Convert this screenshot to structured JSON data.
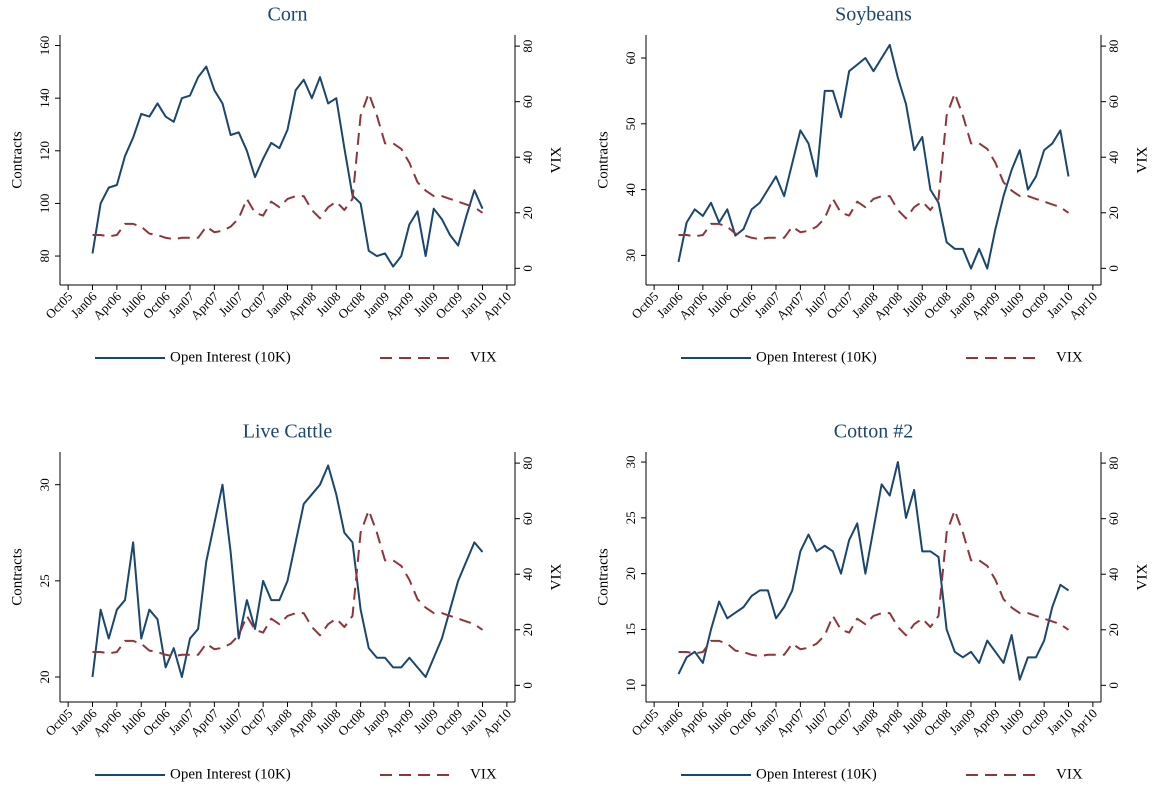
{
  "chart_data": [
    {
      "type": "line",
      "title": "Corn",
      "y_label": "Contracts",
      "y2_label": "VIX",
      "x": [
        "2006-01",
        "2006-02",
        "2006-03",
        "2006-04",
        "2006-05",
        "2006-06",
        "2006-07",
        "2006-08",
        "2006-09",
        "2006-10",
        "2006-11",
        "2006-12",
        "2007-01",
        "2007-02",
        "2007-03",
        "2007-04",
        "2007-05",
        "2007-06",
        "2007-07",
        "2007-08",
        "2007-09",
        "2007-10",
        "2007-11",
        "2007-12",
        "2008-01",
        "2008-02",
        "2008-03",
        "2008-04",
        "2008-05",
        "2008-06",
        "2008-07",
        "2008-08",
        "2008-09",
        "2008-10",
        "2008-11",
        "2008-12",
        "2009-01",
        "2009-02",
        "2009-03",
        "2009-04",
        "2009-05",
        "2009-06",
        "2009-07",
        "2009-08",
        "2009-09",
        "2009-10",
        "2009-11",
        "2009-12",
        "2010-01"
      ],
      "series": [
        {
          "name": "Open Interest (10K)",
          "color": "#1a476f",
          "linestyle": "solid",
          "values": [
            81,
            100,
            106,
            107,
            118,
            125,
            134,
            133,
            138,
            133,
            131,
            140,
            141,
            148,
            152,
            143,
            138,
            126,
            127,
            120,
            110,
            117,
            123,
            121,
            128,
            143,
            147,
            140,
            148,
            138,
            140,
            121,
            103,
            100,
            82,
            80,
            81,
            76,
            80,
            92,
            97,
            80,
            98,
            94,
            88,
            84,
            95,
            105,
            98
          ]
        },
        {
          "name": "VIX",
          "color": "#90353b",
          "linestyle": "dashed",
          "axis": "y2",
          "values": [
            12,
            12,
            11.5,
            12,
            16,
            16,
            15,
            12.5,
            12,
            11,
            10.5,
            11,
            11,
            11,
            15,
            13,
            13.5,
            15,
            18,
            25,
            20,
            19,
            24,
            22,
            25,
            26,
            26,
            21,
            18,
            22,
            24,
            21,
            25,
            55,
            63,
            55,
            45,
            45,
            43,
            38,
            31,
            28,
            26,
            26,
            25,
            24,
            23,
            22,
            20
          ]
        }
      ],
      "xlim": [
        "2005-09",
        "2010-05"
      ],
      "xticks": [
        {
          "value": "2005-10",
          "label": "Oct05"
        },
        {
          "value": "2006-01",
          "label": "Jan06"
        },
        {
          "value": "2006-04",
          "label": "Apr06"
        },
        {
          "value": "2006-07",
          "label": "Jul06"
        },
        {
          "value": "2006-10",
          "label": "Oct06"
        },
        {
          "value": "2007-01",
          "label": "Jan07"
        },
        {
          "value": "2007-04",
          "label": "Apr07"
        },
        {
          "value": "2007-07",
          "label": "Jul07"
        },
        {
          "value": "2007-10",
          "label": "Oct07"
        },
        {
          "value": "2008-01",
          "label": "Jan08"
        },
        {
          "value": "2008-04",
          "label": "Apr08"
        },
        {
          "value": "2008-07",
          "label": "Jul08"
        },
        {
          "value": "2008-10",
          "label": "Oct08"
        },
        {
          "value": "2009-01",
          "label": "Jan09"
        },
        {
          "value": "2009-04",
          "label": "Apr09"
        },
        {
          "value": "2009-07",
          "label": "Jul09"
        },
        {
          "value": "2009-10",
          "label": "Oct09"
        },
        {
          "value": "2010-01",
          "label": "Jan10"
        },
        {
          "value": "2010-04",
          "label": "Apr10"
        }
      ],
      "ylim": [
        69,
        164
      ],
      "yticks": [
        80,
        100,
        120,
        140,
        160
      ],
      "y2lim": [
        -6,
        84
      ],
      "y2ticks": [
        0,
        20,
        40,
        60,
        80
      ]
    },
    {
      "type": "line",
      "title": "Soybeans",
      "y_label": "Contracts",
      "y2_label": "VIX",
      "x": [
        "2006-01",
        "2006-02",
        "2006-03",
        "2006-04",
        "2006-05",
        "2006-06",
        "2006-07",
        "2006-08",
        "2006-09",
        "2006-10",
        "2006-11",
        "2006-12",
        "2007-01",
        "2007-02",
        "2007-03",
        "2007-04",
        "2007-05",
        "2007-06",
        "2007-07",
        "2007-08",
        "2007-09",
        "2007-10",
        "2007-11",
        "2007-12",
        "2008-01",
        "2008-02",
        "2008-03",
        "2008-04",
        "2008-05",
        "2008-06",
        "2008-07",
        "2008-08",
        "2008-09",
        "2008-10",
        "2008-11",
        "2008-12",
        "2009-01",
        "2009-02",
        "2009-03",
        "2009-04",
        "2009-05",
        "2009-06",
        "2009-07",
        "2009-08",
        "2009-09",
        "2009-10",
        "2009-11",
        "2009-12",
        "2010-01"
      ],
      "series": [
        {
          "name": "Open Interest (10K)",
          "color": "#1a476f",
          "linestyle": "solid",
          "values": [
            29,
            35,
            37,
            36,
            38,
            35,
            37,
            33,
            34,
            37,
            38,
            40,
            42,
            39,
            44,
            49,
            47,
            42,
            55,
            55,
            51,
            58,
            59,
            60,
            58,
            60,
            62,
            57,
            53,
            46,
            48,
            40,
            38,
            32,
            31,
            31,
            28,
            31,
            28,
            34,
            39,
            43,
            46,
            40,
            42,
            46,
            47,
            49,
            42
          ]
        },
        {
          "name": "VIX",
          "color": "#90353b",
          "linestyle": "dashed",
          "axis": "y2",
          "values": [
            12,
            12,
            11.5,
            12,
            16,
            16,
            15,
            12.5,
            12,
            11,
            10.5,
            11,
            11,
            11,
            15,
            13,
            13.5,
            15,
            18,
            25,
            20,
            19,
            24,
            22,
            25,
            26,
            26,
            21,
            18,
            22,
            24,
            21,
            25,
            55,
            63,
            55,
            45,
            45,
            43,
            38,
            31,
            28,
            26,
            26,
            25,
            24,
            23,
            22,
            20
          ]
        }
      ],
      "xlim": [
        "2005-09",
        "2010-05"
      ],
      "xticks": [
        {
          "value": "2005-10",
          "label": "Oct05"
        },
        {
          "value": "2006-01",
          "label": "Jan06"
        },
        {
          "value": "2006-04",
          "label": "Apr06"
        },
        {
          "value": "2006-07",
          "label": "Jul06"
        },
        {
          "value": "2006-10",
          "label": "Oct06"
        },
        {
          "value": "2007-01",
          "label": "Jan07"
        },
        {
          "value": "2007-04",
          "label": "Apr07"
        },
        {
          "value": "2007-07",
          "label": "Jul07"
        },
        {
          "value": "2007-10",
          "label": "Oct07"
        },
        {
          "value": "2008-01",
          "label": "Jan08"
        },
        {
          "value": "2008-04",
          "label": "Apr08"
        },
        {
          "value": "2008-07",
          "label": "Jul08"
        },
        {
          "value": "2008-10",
          "label": "Oct08"
        },
        {
          "value": "2009-01",
          "label": "Jan09"
        },
        {
          "value": "2009-04",
          "label": "Apr09"
        },
        {
          "value": "2009-07",
          "label": "Jul09"
        },
        {
          "value": "2009-10",
          "label": "Oct09"
        },
        {
          "value": "2010-01",
          "label": "Jan10"
        },
        {
          "value": "2010-04",
          "label": "Apr10"
        }
      ],
      "ylim": [
        25.5,
        63.5
      ],
      "yticks": [
        30,
        40,
        50,
        60
      ],
      "y2lim": [
        -6,
        84
      ],
      "y2ticks": [
        0,
        20,
        40,
        60,
        80
      ]
    },
    {
      "type": "line",
      "title": "Live Cattle",
      "y_label": "Contracts",
      "y2_label": "VIX",
      "x": [
        "2006-01",
        "2006-02",
        "2006-03",
        "2006-04",
        "2006-05",
        "2006-06",
        "2006-07",
        "2006-08",
        "2006-09",
        "2006-10",
        "2006-11",
        "2006-12",
        "2007-01",
        "2007-02",
        "2007-03",
        "2007-04",
        "2007-05",
        "2007-06",
        "2007-07",
        "2007-08",
        "2007-09",
        "2007-10",
        "2007-11",
        "2007-12",
        "2008-01",
        "2008-02",
        "2008-03",
        "2008-04",
        "2008-05",
        "2008-06",
        "2008-07",
        "2008-08",
        "2008-09",
        "2008-10",
        "2008-11",
        "2008-12",
        "2009-01",
        "2009-02",
        "2009-03",
        "2009-04",
        "2009-05",
        "2009-06",
        "2009-07",
        "2009-08",
        "2009-09",
        "2009-10",
        "2009-11",
        "2009-12",
        "2010-01"
      ],
      "series": [
        {
          "name": "Open Interest (10K)",
          "color": "#1a476f",
          "linestyle": "solid",
          "values": [
            20,
            23.5,
            22,
            23.5,
            24,
            27,
            22,
            23.5,
            23,
            20.5,
            21.5,
            20,
            22,
            22.5,
            26,
            28,
            30,
            26.5,
            22,
            24,
            22.5,
            25,
            24,
            24,
            25,
            27,
            29,
            29.5,
            30,
            31,
            29.5,
            27.5,
            27,
            23.5,
            21.5,
            21,
            21,
            20.5,
            20.5,
            21,
            20.5,
            20,
            21,
            22,
            23.5,
            25,
            26,
            27,
            26.5
          ]
        },
        {
          "name": "VIX",
          "color": "#90353b",
          "linestyle": "dashed",
          "axis": "y2",
          "values": [
            12,
            12,
            11.5,
            12,
            16,
            16,
            15,
            12.5,
            12,
            11,
            10.5,
            11,
            11,
            11,
            15,
            13,
            13.5,
            15,
            18,
            25,
            20,
            19,
            24,
            22,
            25,
            26,
            26,
            21,
            18,
            22,
            24,
            21,
            25,
            55,
            63,
            55,
            45,
            45,
            43,
            38,
            31,
            28,
            26,
            26,
            25,
            24,
            23,
            22,
            20
          ]
        }
      ],
      "xlim": [
        "2005-09",
        "2010-05"
      ],
      "xticks": [
        {
          "value": "2005-10",
          "label": "Oct05"
        },
        {
          "value": "2006-01",
          "label": "Jan06"
        },
        {
          "value": "2006-04",
          "label": "Apr06"
        },
        {
          "value": "2006-07",
          "label": "Jul06"
        },
        {
          "value": "2006-10",
          "label": "Oct06"
        },
        {
          "value": "2007-01",
          "label": "Jan07"
        },
        {
          "value": "2007-04",
          "label": "Apr07"
        },
        {
          "value": "2007-07",
          "label": "Jul07"
        },
        {
          "value": "2007-10",
          "label": "Oct07"
        },
        {
          "value": "2008-01",
          "label": "Jan08"
        },
        {
          "value": "2008-04",
          "label": "Apr08"
        },
        {
          "value": "2008-07",
          "label": "Jul08"
        },
        {
          "value": "2008-10",
          "label": "Oct08"
        },
        {
          "value": "2009-01",
          "label": "Jan09"
        },
        {
          "value": "2009-04",
          "label": "Apr09"
        },
        {
          "value": "2009-07",
          "label": "Jul09"
        },
        {
          "value": "2009-10",
          "label": "Oct09"
        },
        {
          "value": "2010-01",
          "label": "Jan10"
        },
        {
          "value": "2010-04",
          "label": "Apr10"
        }
      ],
      "ylim": [
        18.7,
        31.7
      ],
      "yticks": [
        20,
        25,
        30
      ],
      "y2lim": [
        -6,
        84
      ],
      "y2ticks": [
        0,
        20,
        40,
        60,
        80
      ]
    },
    {
      "type": "line",
      "title": "Cotton #2",
      "y_label": "Contracts",
      "y2_label": "VIX",
      "x": [
        "2006-01",
        "2006-02",
        "2006-03",
        "2006-04",
        "2006-05",
        "2006-06",
        "2006-07",
        "2006-08",
        "2006-09",
        "2006-10",
        "2006-11",
        "2006-12",
        "2007-01",
        "2007-02",
        "2007-03",
        "2007-04",
        "2007-05",
        "2007-06",
        "2007-07",
        "2007-08",
        "2007-09",
        "2007-10",
        "2007-11",
        "2007-12",
        "2008-01",
        "2008-02",
        "2008-03",
        "2008-04",
        "2008-05",
        "2008-06",
        "2008-07",
        "2008-08",
        "2008-09",
        "2008-10",
        "2008-11",
        "2008-12",
        "2009-01",
        "2009-02",
        "2009-03",
        "2009-04",
        "2009-05",
        "2009-06",
        "2009-07",
        "2009-08",
        "2009-09",
        "2009-10",
        "2009-11",
        "2009-12",
        "2010-01"
      ],
      "series": [
        {
          "name": "Open Interest (10K)",
          "color": "#1a476f",
          "linestyle": "solid",
          "values": [
            11,
            12.5,
            13,
            12,
            15,
            17.5,
            16,
            16.5,
            17,
            18,
            18.5,
            18.5,
            16,
            17,
            18.5,
            22,
            23.5,
            22,
            22.5,
            22,
            20,
            23,
            24.5,
            20,
            24,
            28,
            27,
            30,
            25,
            27.5,
            22,
            22,
            21.5,
            15,
            13,
            12.5,
            13,
            12,
            14,
            13,
            12,
            14.5,
            10.5,
            12.5,
            12.5,
            14,
            17,
            19,
            18.5
          ]
        },
        {
          "name": "VIX",
          "color": "#90353b",
          "linestyle": "dashed",
          "axis": "y2",
          "values": [
            12,
            12,
            11.5,
            12,
            16,
            16,
            15,
            12.5,
            12,
            11,
            10.5,
            11,
            11,
            11,
            15,
            13,
            13.5,
            15,
            18,
            25,
            20,
            19,
            24,
            22,
            25,
            26,
            26,
            21,
            18,
            22,
            24,
            21,
            25,
            55,
            63,
            55,
            45,
            45,
            43,
            38,
            31,
            28,
            26,
            26,
            25,
            24,
            23,
            22,
            20
          ]
        }
      ],
      "xlim": [
        "2005-09",
        "2010-05"
      ],
      "xticks": [
        {
          "value": "2005-10",
          "label": "Oct05"
        },
        {
          "value": "2006-01",
          "label": "Jan06"
        },
        {
          "value": "2006-04",
          "label": "Apr06"
        },
        {
          "value": "2006-07",
          "label": "Jul06"
        },
        {
          "value": "2006-10",
          "label": "Oct06"
        },
        {
          "value": "2007-01",
          "label": "Jan07"
        },
        {
          "value": "2007-04",
          "label": "Apr07"
        },
        {
          "value": "2007-07",
          "label": "Jul07"
        },
        {
          "value": "2007-10",
          "label": "Oct07"
        },
        {
          "value": "2008-01",
          "label": "Jan08"
        },
        {
          "value": "2008-04",
          "label": "Apr08"
        },
        {
          "value": "2008-07",
          "label": "Jul08"
        },
        {
          "value": "2008-10",
          "label": "Oct08"
        },
        {
          "value": "2009-01",
          "label": "Jan09"
        },
        {
          "value": "2009-04",
          "label": "Apr09"
        },
        {
          "value": "2009-07",
          "label": "Jul09"
        },
        {
          "value": "2009-10",
          "label": "Oct09"
        },
        {
          "value": "2010-01",
          "label": "Jan10"
        },
        {
          "value": "2010-04",
          "label": "Apr10"
        }
      ],
      "ylim": [
        8.5,
        30.9
      ],
      "yticks": [
        10,
        15,
        20,
        25,
        30
      ],
      "y2lim": [
        -6,
        84
      ],
      "y2ticks": [
        0,
        20,
        40,
        60,
        80
      ]
    }
  ]
}
